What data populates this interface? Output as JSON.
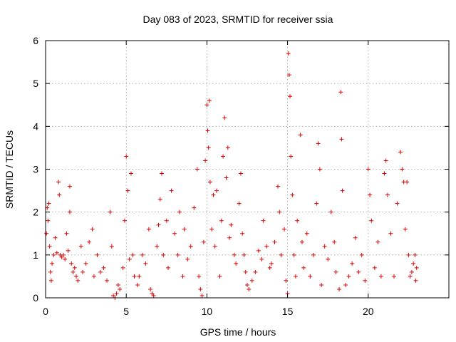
{
  "chart_data": {
    "type": "scatter",
    "title": "Day 083 of 2023, SRMTID for receiver ssia",
    "xlabel": "GPS time / hours",
    "ylabel": "SRMTID / TECUs",
    "xlim": [
      0,
      25
    ],
    "ylim": [
      0,
      6
    ],
    "xticks": [
      0,
      5,
      10,
      15,
      20
    ],
    "xtick_labels": [
      "0",
      "5",
      "10",
      "15",
      "20"
    ],
    "yticks": [
      0,
      1,
      2,
      3,
      4,
      5,
      6
    ],
    "ytick_labels": [
      "0",
      "1",
      "2",
      "3",
      "4",
      "5",
      "6"
    ],
    "grid": true,
    "marker": "plus",
    "color": "#e00000",
    "series": [
      {
        "name": "SRMTID",
        "points": [
          [
            0.05,
            1.5
          ],
          [
            0.1,
            2.1
          ],
          [
            0.15,
            1.8
          ],
          [
            0.2,
            2.2
          ],
          [
            0.25,
            1.2
          ],
          [
            0.3,
            0.6
          ],
          [
            0.35,
            0.4
          ],
          [
            0.4,
            0.8
          ],
          [
            0.5,
            1.0
          ],
          [
            0.6,
            1.4
          ],
          [
            0.7,
            1.05
          ],
          [
            0.8,
            2.7
          ],
          [
            0.85,
            2.4
          ],
          [
            0.9,
            1.0
          ],
          [
            1.0,
            0.95
          ],
          [
            1.1,
            1.0
          ],
          [
            1.2,
            0.9
          ],
          [
            1.3,
            1.5
          ],
          [
            1.4,
            1.1
          ],
          [
            1.5,
            2.0
          ],
          [
            1.5,
            2.6
          ],
          [
            1.6,
            0.8
          ],
          [
            1.7,
            0.6
          ],
          [
            1.8,
            0.7
          ],
          [
            1.9,
            0.5
          ],
          [
            2.0,
            0.4
          ],
          [
            2.2,
            1.2
          ],
          [
            2.3,
            0.6
          ],
          [
            2.5,
            0.8
          ],
          [
            2.7,
            1.3
          ],
          [
            2.9,
            1.6
          ],
          [
            3.0,
            0.5
          ],
          [
            3.2,
            1.0
          ],
          [
            3.4,
            0.6
          ],
          [
            3.6,
            0.7
          ],
          [
            3.8,
            0.4
          ],
          [
            4.0,
            2.0
          ],
          [
            4.1,
            1.2
          ],
          [
            4.2,
            0.05
          ],
          [
            4.3,
            0.0
          ],
          [
            4.4,
            0.1
          ],
          [
            4.5,
            0.3
          ],
          [
            4.6,
            0.2
          ],
          [
            4.8,
            0.7
          ],
          [
            4.9,
            1.8
          ],
          [
            5.0,
            3.3
          ],
          [
            5.1,
            2.5
          ],
          [
            5.2,
            0.9
          ],
          [
            5.3,
            2.9
          ],
          [
            5.4,
            1.0
          ],
          [
            5.5,
            0.5
          ],
          [
            5.7,
            0.3
          ],
          [
            5.8,
            0.5
          ],
          [
            6.0,
            1.0
          ],
          [
            6.2,
            0.8
          ],
          [
            6.4,
            1.6
          ],
          [
            6.5,
            0.2
          ],
          [
            6.6,
            0.1
          ],
          [
            6.7,
            0.05
          ],
          [
            6.9,
            1.2
          ],
          [
            7.0,
            1.7
          ],
          [
            7.1,
            2.3
          ],
          [
            7.2,
            2.9
          ],
          [
            7.3,
            1.0
          ],
          [
            7.5,
            1.8
          ],
          [
            7.6,
            0.7
          ],
          [
            7.8,
            2.5
          ],
          [
            8.0,
            1.5
          ],
          [
            8.2,
            1.0
          ],
          [
            8.3,
            2.0
          ],
          [
            8.5,
            0.5
          ],
          [
            8.6,
            1.6
          ],
          [
            8.8,
            0.9
          ],
          [
            9.0,
            1.2
          ],
          [
            9.2,
            2.1
          ],
          [
            9.4,
            3.0
          ],
          [
            9.5,
            0.5
          ],
          [
            9.6,
            0.2
          ],
          [
            9.7,
            0.05
          ],
          [
            9.8,
            1.3
          ],
          [
            9.9,
            3.2
          ],
          [
            10.0,
            4.5
          ],
          [
            10.05,
            3.9
          ],
          [
            10.1,
            3.5
          ],
          [
            10.15,
            4.6
          ],
          [
            10.2,
            2.7
          ],
          [
            10.3,
            1.6
          ],
          [
            10.4,
            2.4
          ],
          [
            10.5,
            1.2
          ],
          [
            10.6,
            2.5
          ],
          [
            10.8,
            0.5
          ],
          [
            10.9,
            1.8
          ],
          [
            11.0,
            3.3
          ],
          [
            11.1,
            4.2
          ],
          [
            11.2,
            2.8
          ],
          [
            11.3,
            3.5
          ],
          [
            11.4,
            1.4
          ],
          [
            11.5,
            1.7
          ],
          [
            11.7,
            1.0
          ],
          [
            11.8,
            0.8
          ],
          [
            12.0,
            2.2
          ],
          [
            12.1,
            2.9
          ],
          [
            12.2,
            1.5
          ],
          [
            12.3,
            1.0
          ],
          [
            12.4,
            0.6
          ],
          [
            12.5,
            0.3
          ],
          [
            12.6,
            0.2
          ],
          [
            12.8,
            0.4
          ],
          [
            13.0,
            0.6
          ],
          [
            13.2,
            1.1
          ],
          [
            13.4,
            0.9
          ],
          [
            13.5,
            1.8
          ],
          [
            13.7,
            1.2
          ],
          [
            13.9,
            0.7
          ],
          [
            14.0,
            0.8
          ],
          [
            14.2,
            1.3
          ],
          [
            14.4,
            2.6
          ],
          [
            14.5,
            2.0
          ],
          [
            14.6,
            1.0
          ],
          [
            14.8,
            1.6
          ],
          [
            14.9,
            0.4
          ],
          [
            15.0,
            0.1
          ],
          [
            15.05,
            5.7
          ],
          [
            15.1,
            5.2
          ],
          [
            15.15,
            4.7
          ],
          [
            15.2,
            3.3
          ],
          [
            15.3,
            2.4
          ],
          [
            15.4,
            1.0
          ],
          [
            15.5,
            0.5
          ],
          [
            15.6,
            1.8
          ],
          [
            15.8,
            3.8
          ],
          [
            15.9,
            1.3
          ],
          [
            16.0,
            0.7
          ],
          [
            16.2,
            1.5
          ],
          [
            16.4,
            0.5
          ],
          [
            16.6,
            1.0
          ],
          [
            16.8,
            2.2
          ],
          [
            16.9,
            3.6
          ],
          [
            17.0,
            3.0
          ],
          [
            17.1,
            0.3
          ],
          [
            17.3,
            1.2
          ],
          [
            17.5,
            0.9
          ],
          [
            17.7,
            2.0
          ],
          [
            17.9,
            1.3
          ],
          [
            18.0,
            0.6
          ],
          [
            18.2,
            0.2
          ],
          [
            18.3,
            4.8
          ],
          [
            18.35,
            3.7
          ],
          [
            18.4,
            2.5
          ],
          [
            18.6,
            0.3
          ],
          [
            18.8,
            0.5
          ],
          [
            19.0,
            0.8
          ],
          [
            19.2,
            1.4
          ],
          [
            19.4,
            0.6
          ],
          [
            19.6,
            1.0
          ],
          [
            19.8,
            0.4
          ],
          [
            20.0,
            3.0
          ],
          [
            20.1,
            2.4
          ],
          [
            20.2,
            1.8
          ],
          [
            20.4,
            0.7
          ],
          [
            20.6,
            1.3
          ],
          [
            20.8,
            0.5
          ],
          [
            21.0,
            2.9
          ],
          [
            21.1,
            3.2
          ],
          [
            21.2,
            2.4
          ],
          [
            21.4,
            1.5
          ],
          [
            21.6,
            0.5
          ],
          [
            21.8,
            2.2
          ],
          [
            22.0,
            3.4
          ],
          [
            22.1,
            3.0
          ],
          [
            22.2,
            2.7
          ],
          [
            22.3,
            1.6
          ],
          [
            22.4,
            2.7
          ],
          [
            22.5,
            1.0
          ],
          [
            22.6,
            0.5
          ],
          [
            22.7,
            0.6
          ],
          [
            22.8,
            0.8
          ],
          [
            22.9,
            1.0
          ],
          [
            22.95,
            0.4
          ],
          [
            23.0,
            0.7
          ]
        ]
      }
    ]
  }
}
